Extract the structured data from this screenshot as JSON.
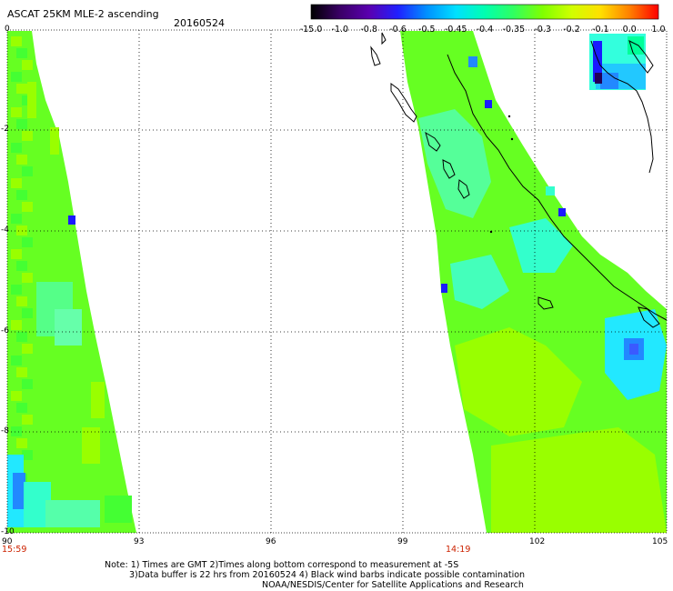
{
  "header": {
    "title": "ASCAT 25KM MLE-2 ascending",
    "date": "20160524"
  },
  "colorbar": {
    "labels": [
      "-15.0",
      "-1.0",
      "-0.8",
      "-0.6",
      "-0.5",
      "-0.45",
      "-0.4",
      "-0.35",
      "-0.3",
      "-0.2",
      "-0.1",
      "0.0",
      "1.0"
    ],
    "colors": [
      "#000000",
      "#4a0080",
      "#3000d0",
      "#0040ff",
      "#00a0ff",
      "#00ffff",
      "#00ff80",
      "#40ff40",
      "#80ff00",
      "#c0ff00",
      "#ffff00",
      "#ff8000",
      "#ff0000"
    ]
  },
  "axes": {
    "x_labels": [
      "90",
      "93",
      "96",
      "99",
      "102",
      "105"
    ],
    "y_labels": [
      "0",
      "-2",
      "-4",
      "-6",
      "-8",
      "-10"
    ]
  },
  "times": {
    "left": "15:59",
    "right": "14:19"
  },
  "notes": {
    "line1": "Note: 1) Times are GMT 2)Times along bottom correspond to measurement at -5S",
    "line2": "3)Data buffer is 22 hrs from 20160524 4) Black wind barbs indicate possible contamination",
    "line3": "NOAA/NESDIS/Center for Satellite Applications and Research"
  }
}
